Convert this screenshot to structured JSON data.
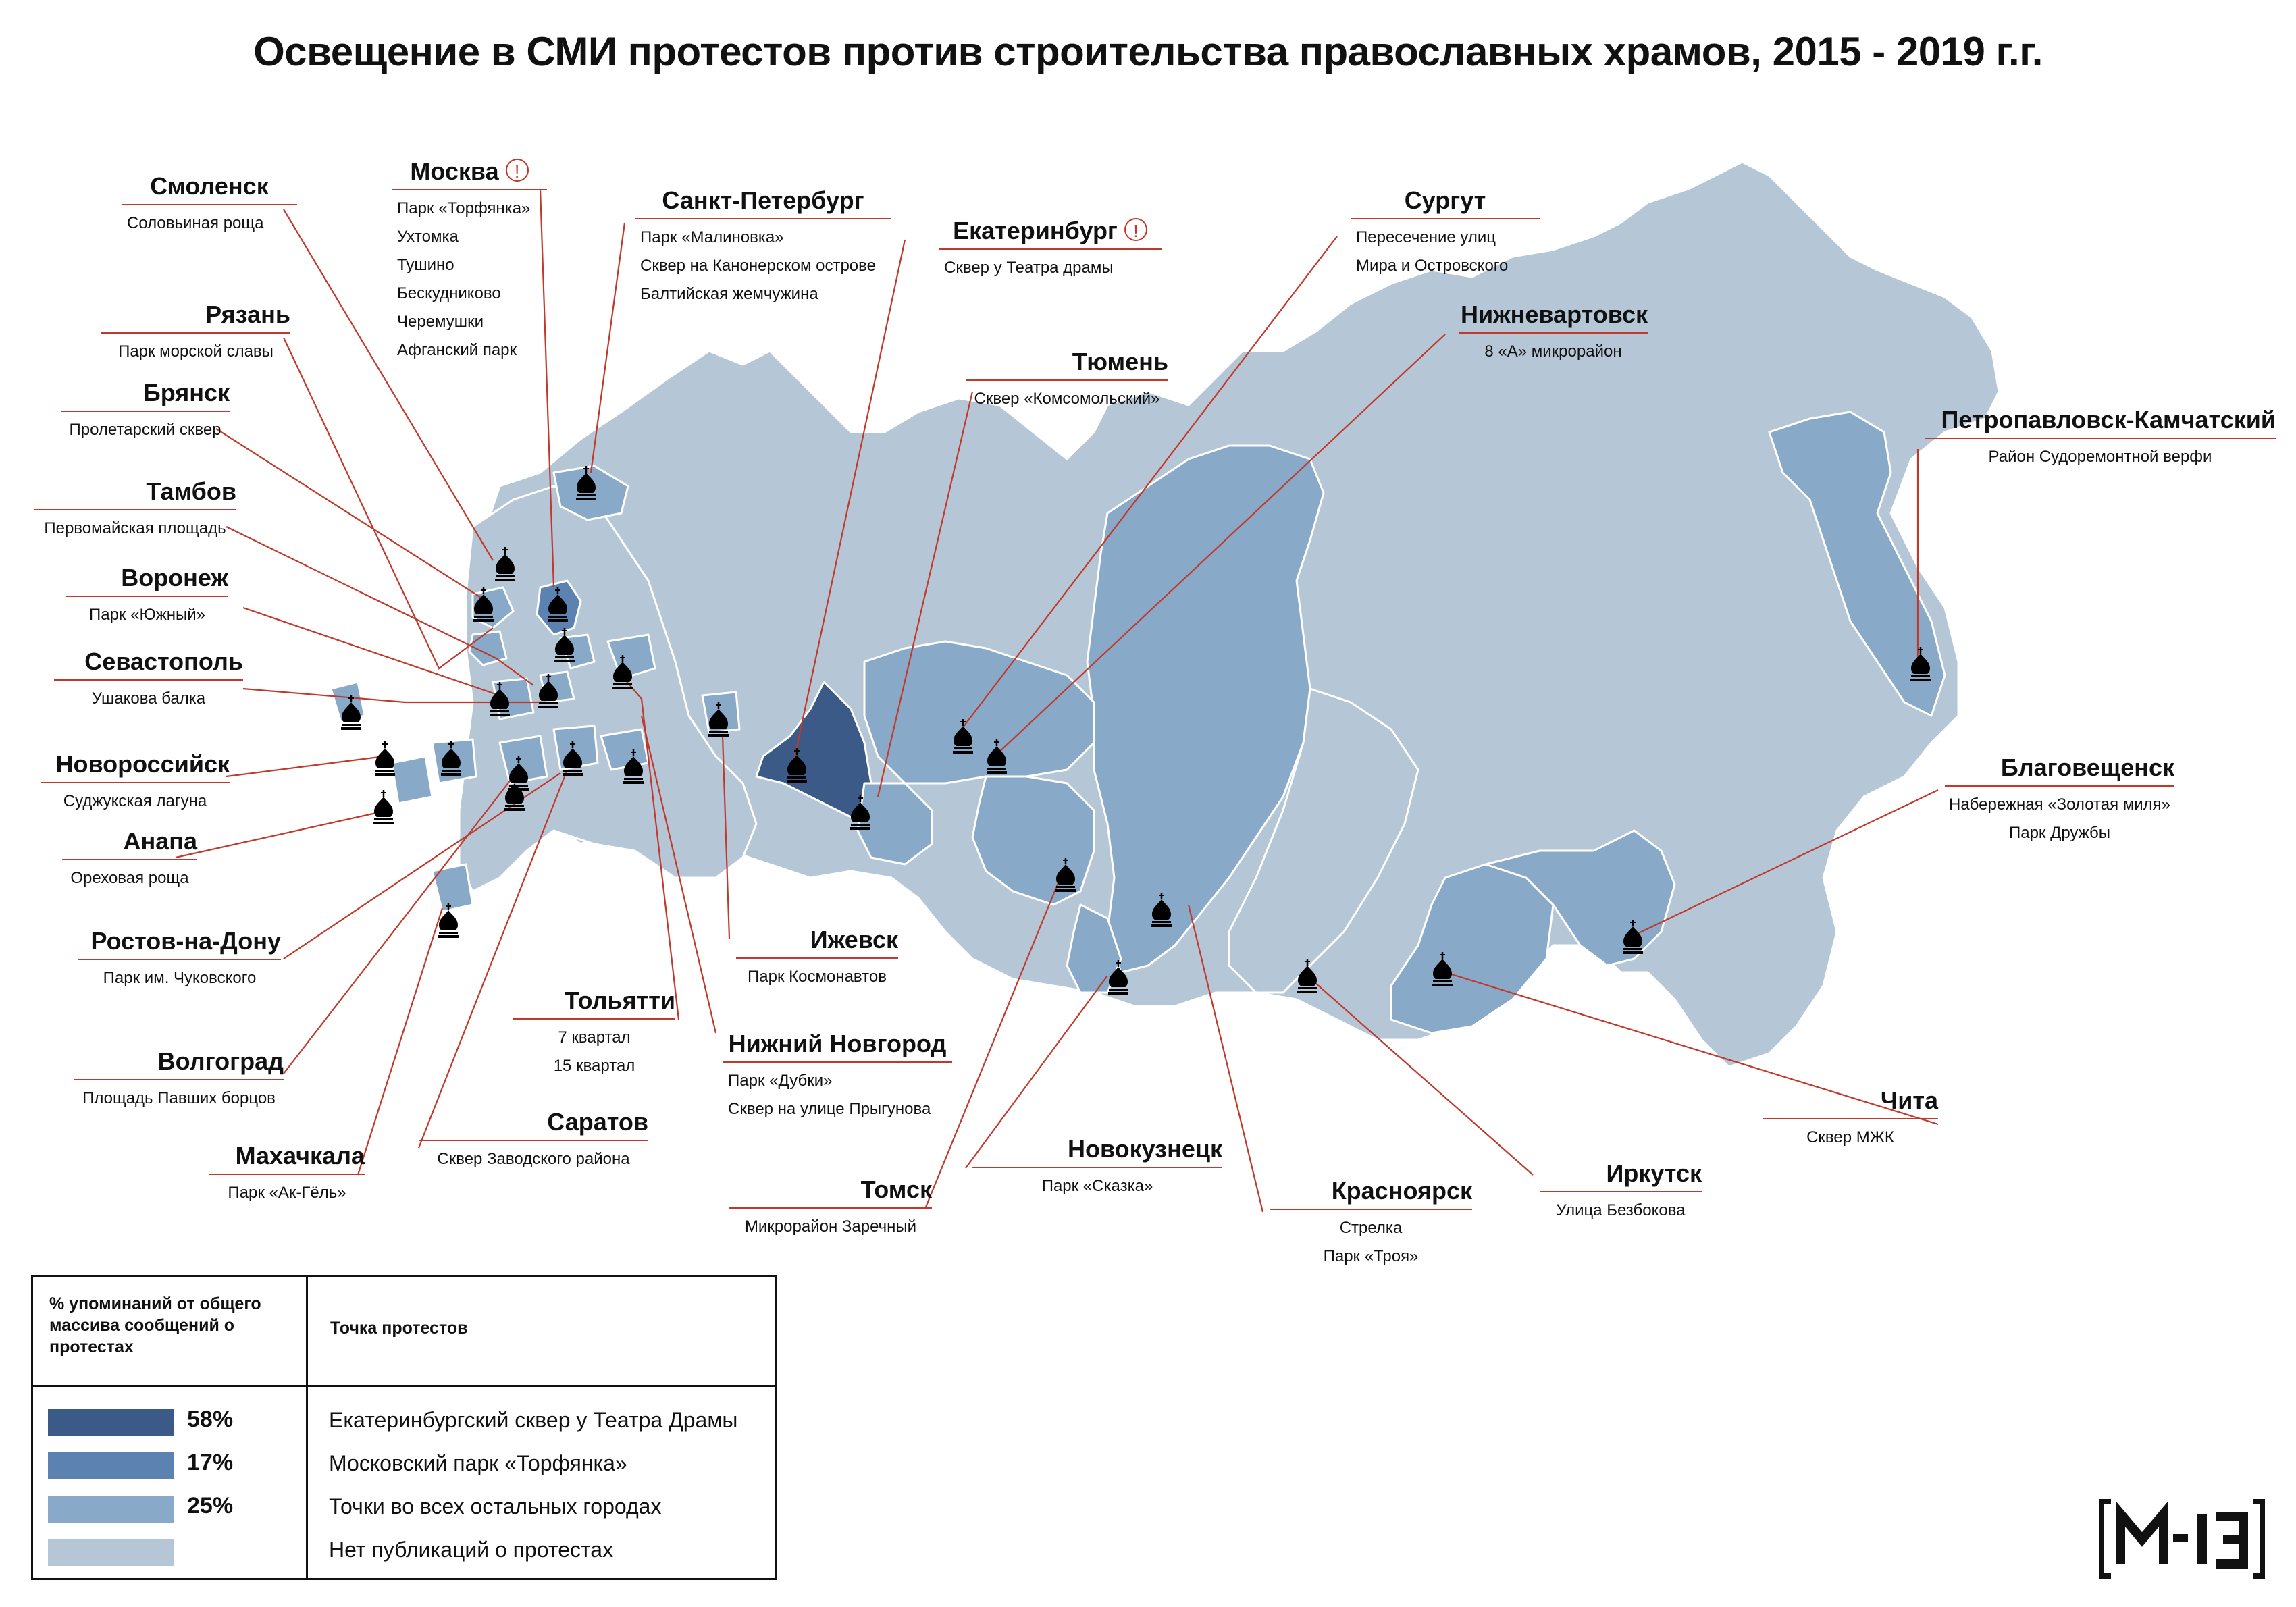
{
  "title": "Освещение в СМИ протестов против строительства православных храмов, 2015 - 2019 г.г.",
  "colors": {
    "level_58": "#3b5a87",
    "level_17": "#5b82b0",
    "level_25": "#88a9c8",
    "no_data": "#b5c7d6",
    "leader_line": "#c0392b",
    "border": "#ffffff"
  },
  "icon": "church-dome-icon",
  "warning_icon": "exclamation-circle-icon",
  "cities": [
    {
      "id": "smolensk",
      "name": "Смоленск",
      "items": [
        "Соловьиная роща"
      ]
    },
    {
      "id": "moskva",
      "name": "Москва",
      "warn": true,
      "items": [
        "Парк «Торфянка»",
        "Ухтомка",
        "Тушино",
        "Бескудниково",
        "Черемушки",
        "Афганский парк"
      ]
    },
    {
      "id": "spb",
      "name": "Санкт-Петербург",
      "items": [
        "Парк «Малиновка»",
        "Сквер на Канонерском острове",
        "Балтийская жемчужина"
      ]
    },
    {
      "id": "ekb",
      "name": "Екатеринбург",
      "warn": true,
      "items": [
        "Сквер у Театра драмы"
      ]
    },
    {
      "id": "surgut",
      "name": "Сургут",
      "items": [
        "Пересечение улиц",
        "Мира и Островского"
      ]
    },
    {
      "id": "ryazan",
      "name": "Рязань",
      "items": [
        "Парк морской славы"
      ]
    },
    {
      "id": "nizhnevartovsk",
      "name": "Нижневартовск",
      "items": [
        "8 «А» микрорайон"
      ]
    },
    {
      "id": "tyumen",
      "name": "Тюмень",
      "items": [
        "Сквер «Комсомольский»"
      ]
    },
    {
      "id": "bryansk",
      "name": "Брянск",
      "items": [
        "Пролетарский сквер"
      ]
    },
    {
      "id": "petropavlovsk",
      "name": "Петропавловск-Камчатский",
      "items": [
        "Район Судоремонтной верфи"
      ]
    },
    {
      "id": "tambov",
      "name": "Тамбов",
      "items": [
        "Первомайская площадь"
      ]
    },
    {
      "id": "voronezh",
      "name": "Воронеж",
      "items": [
        "Парк «Южный»"
      ]
    },
    {
      "id": "sevastopol",
      "name": "Севастополь",
      "items": [
        "Ушакова балка"
      ]
    },
    {
      "id": "blagoveshchensk",
      "name": "Благовещенск",
      "items": [
        "Набережная «Золотая миля»",
        "Парк Дружбы"
      ]
    },
    {
      "id": "novorossiysk",
      "name": "Новороссийск",
      "items": [
        "Суджукская лагуна"
      ]
    },
    {
      "id": "anapa",
      "name": "Анапа",
      "items": [
        "Ореховая роща"
      ]
    },
    {
      "id": "izhevsk",
      "name": "Ижевск",
      "items": [
        "Парк Космонавтов"
      ]
    },
    {
      "id": "rostov",
      "name": "Ростов-на-Дону",
      "items": [
        "Парк им. Чуковского"
      ]
    },
    {
      "id": "tolyatti",
      "name": "Тольятти",
      "items": [
        "7 квартал",
        "15 квартал"
      ]
    },
    {
      "id": "nnovgorod",
      "name": "Нижний Новгород",
      "items": [
        "Парк «Дубки»",
        "Сквер на улице Прыгунова"
      ]
    },
    {
      "id": "volgograd",
      "name": "Волгоград",
      "items": [
        "Площадь Павших борцов"
      ]
    },
    {
      "id": "chita",
      "name": "Чита",
      "items": [
        "Сквер МЖК"
      ]
    },
    {
      "id": "saratov",
      "name": "Саратов",
      "items": [
        "Сквер Заводского района"
      ]
    },
    {
      "id": "novokuznetsk",
      "name": "Новокузнецк",
      "items": [
        "Парк «Сказка»"
      ]
    },
    {
      "id": "makhachkala",
      "name": "Махачкала",
      "items": [
        "Парк «Ак-Гёль»"
      ]
    },
    {
      "id": "tomsk",
      "name": "Томск",
      "items": [
        "Микрорайон Заречный"
      ]
    },
    {
      "id": "krasnoyarsk",
      "name": "Красноярск",
      "items": [
        "Стрелка",
        "Парк «Троя»"
      ]
    },
    {
      "id": "irkutsk",
      "name": "Иркутск",
      "items": [
        "Улица Безбокова"
      ]
    }
  ],
  "legend": {
    "header_share": "% упоминаний от общего массива сообщений о протестах",
    "header_point": "Точка протестов",
    "rows": [
      {
        "pct": "58%",
        "desc": "Екатеринбургский сквер у Театра Драмы",
        "color": "#3b5a87"
      },
      {
        "pct": "17%",
        "desc": "Московский парк «Торфянка»",
        "color": "#5b82b0"
      },
      {
        "pct": "25%",
        "desc": "Точки во всех остальных городах",
        "color": "#88a9c8"
      },
      {
        "pct": "",
        "desc": "Нет публикаций о протестах",
        "color": "#b5c7d6"
      }
    ]
  },
  "logo": "М-13"
}
